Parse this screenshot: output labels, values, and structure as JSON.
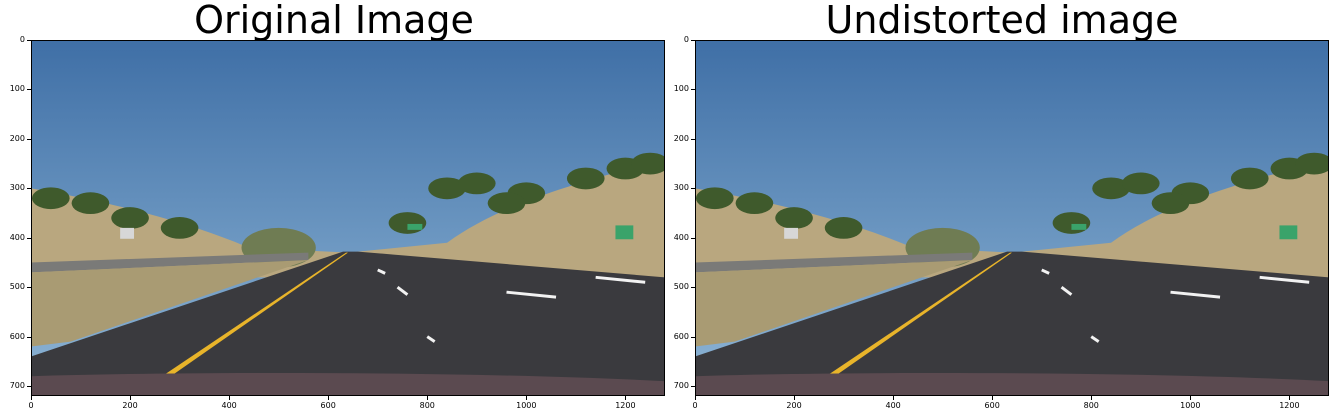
{
  "panels": [
    {
      "title": "Original Image",
      "x_ticks": [
        "0",
        "200",
        "400",
        "600",
        "800",
        "1000",
        "1200"
      ],
      "y_ticks": [
        "0",
        "100",
        "200",
        "300",
        "400",
        "500",
        "600",
        "700"
      ]
    },
    {
      "title": "Undistorted image",
      "x_ticks": [
        "0",
        "200",
        "400",
        "600",
        "800",
        "1000",
        "1200"
      ],
      "y_ticks": [
        "0",
        "100",
        "200",
        "300",
        "400",
        "500",
        "600",
        "700"
      ]
    }
  ],
  "image_extent": {
    "width": 1280,
    "height": 720
  },
  "colors": {
    "sky_top": "#3f6fa6",
    "sky_bottom": "#8fb6d6",
    "hills": "#b9a77f",
    "road": "#3a3a3e",
    "lane_yellow": "#e8b42a",
    "lane_white": "#f2f2f2",
    "trees": "#3f5a2c",
    "hood": "#5b4a50"
  }
}
